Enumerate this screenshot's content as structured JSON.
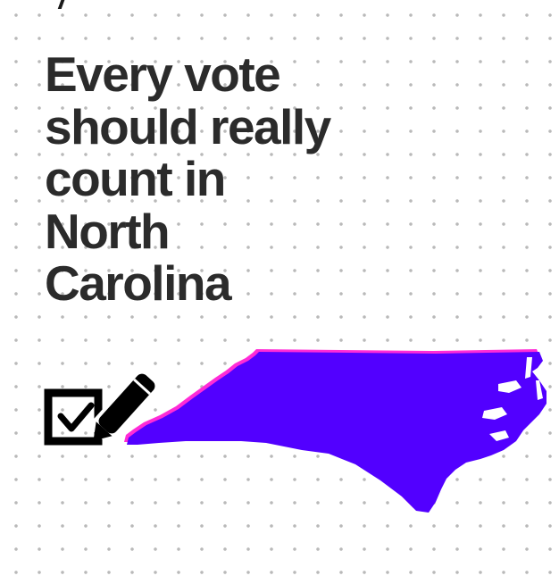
{
  "headline": {
    "lines": [
      "Every vote",
      "should really",
      "count in",
      "North",
      "Carolina"
    ]
  },
  "graphics": {
    "ballot_icon": "checkbox-with-pen-icon",
    "state_map": "north-carolina-state-shape"
  },
  "colors": {
    "background": "#ffffff",
    "dots": "#b9b9b9",
    "headline_text": "#2b2b2b",
    "state_fill": "#5200ff",
    "state_outline": "#ff2bd6",
    "icon": "#000000"
  }
}
